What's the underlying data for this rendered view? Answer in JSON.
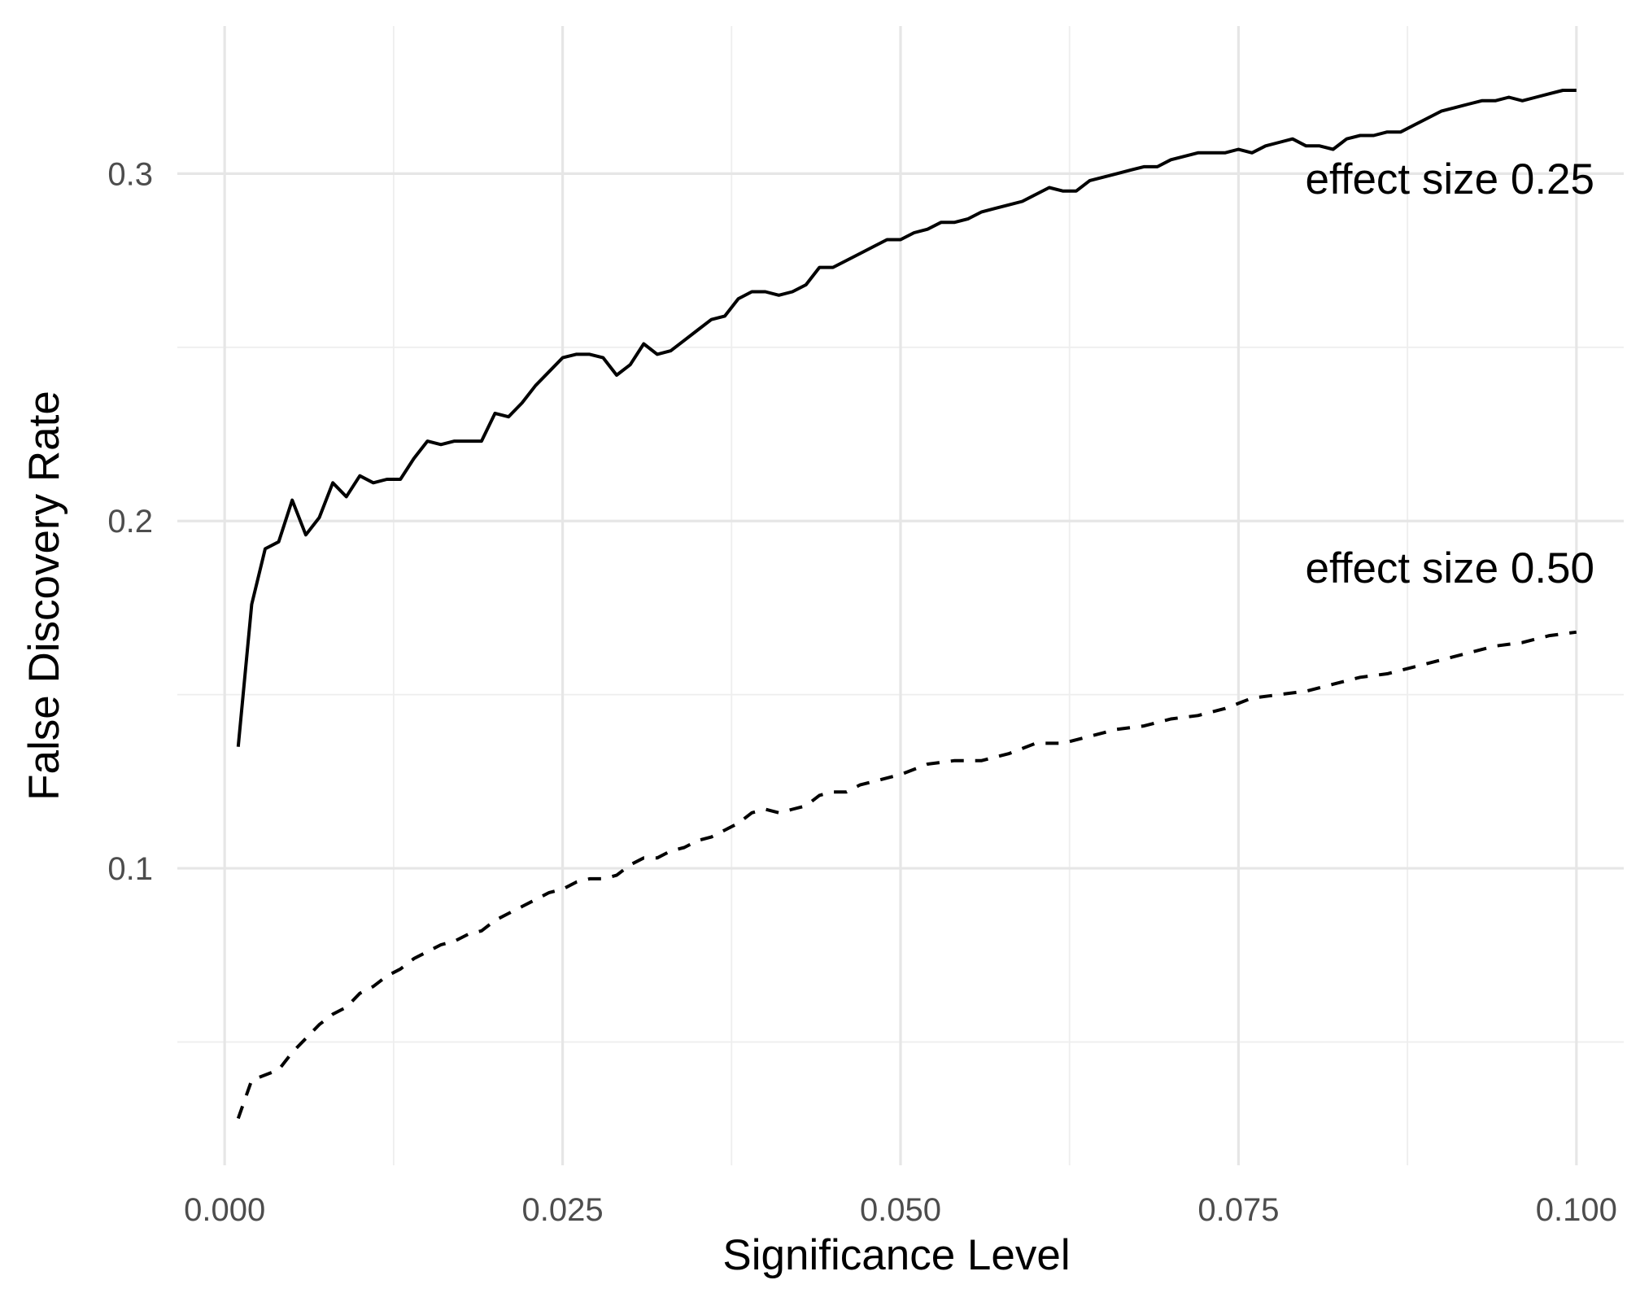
{
  "chart_data": {
    "type": "line",
    "title": "",
    "xlabel": "Significance Level",
    "ylabel": "False Discovery Rate",
    "xlim": [
      -0.0035,
      0.1035
    ],
    "ylim": [
      0.0145,
      0.3425
    ],
    "x_ticks": [
      0.0,
      0.025,
      0.05,
      0.075,
      0.1
    ],
    "x_tick_labels": [
      "0.000",
      "0.025",
      "0.050",
      "0.075",
      "0.100"
    ],
    "y_ticks": [
      0.1,
      0.2,
      0.3
    ],
    "y_tick_labels": [
      "0.1",
      "0.2",
      "0.3"
    ],
    "grid": true,
    "legend": "none",
    "line_color": "#000000",
    "grid_color": "#e6e6e6",
    "series": [
      {
        "annotation": "effect size 0.25",
        "line_style": "solid",
        "x": [
          0.001,
          0.002,
          0.003,
          0.004,
          0.005,
          0.006,
          0.007,
          0.008,
          0.009,
          0.01,
          0.011,
          0.012,
          0.013,
          0.014,
          0.015,
          0.016,
          0.017,
          0.018,
          0.019,
          0.02,
          0.021,
          0.022,
          0.023,
          0.024,
          0.025,
          0.026,
          0.027,
          0.028,
          0.029,
          0.03,
          0.031,
          0.032,
          0.033,
          0.034,
          0.035,
          0.036,
          0.037,
          0.038,
          0.039,
          0.04,
          0.041,
          0.042,
          0.043,
          0.044,
          0.045,
          0.046,
          0.047,
          0.048,
          0.049,
          0.05,
          0.051,
          0.052,
          0.053,
          0.054,
          0.055,
          0.056,
          0.057,
          0.058,
          0.059,
          0.06,
          0.061,
          0.062,
          0.063,
          0.064,
          0.065,
          0.066,
          0.067,
          0.068,
          0.069,
          0.07,
          0.071,
          0.072,
          0.073,
          0.074,
          0.075,
          0.076,
          0.077,
          0.078,
          0.079,
          0.08,
          0.081,
          0.082,
          0.083,
          0.084,
          0.085,
          0.086,
          0.087,
          0.088,
          0.089,
          0.09,
          0.091,
          0.092,
          0.093,
          0.094,
          0.095,
          0.096,
          0.097,
          0.098,
          0.099,
          0.1
        ],
        "y": [
          0.135,
          0.176,
          0.192,
          0.194,
          0.206,
          0.196,
          0.201,
          0.211,
          0.207,
          0.213,
          0.211,
          0.212,
          0.212,
          0.218,
          0.223,
          0.222,
          0.223,
          0.223,
          0.223,
          0.231,
          0.23,
          0.234,
          0.239,
          0.243,
          0.247,
          0.248,
          0.248,
          0.247,
          0.242,
          0.245,
          0.251,
          0.248,
          0.249,
          0.252,
          0.255,
          0.258,
          0.259,
          0.264,
          0.266,
          0.266,
          0.265,
          0.266,
          0.268,
          0.273,
          0.273,
          0.275,
          0.277,
          0.279,
          0.281,
          0.281,
          0.283,
          0.284,
          0.286,
          0.286,
          0.287,
          0.289,
          0.29,
          0.291,
          0.292,
          0.294,
          0.296,
          0.295,
          0.295,
          0.298,
          0.299,
          0.3,
          0.301,
          0.302,
          0.302,
          0.304,
          0.305,
          0.306,
          0.306,
          0.306,
          0.307,
          0.306,
          0.308,
          0.309,
          0.31,
          0.308,
          0.308,
          0.307,
          0.31,
          0.311,
          0.311,
          0.312,
          0.312,
          0.314,
          0.316,
          0.318,
          0.319,
          0.32,
          0.321,
          0.321,
          0.322,
          0.321,
          0.322,
          0.323,
          0.324,
          0.324
        ]
      },
      {
        "annotation": "effect size 0.50",
        "line_style": "dashed",
        "x": [
          0.001,
          0.002,
          0.004,
          0.005,
          0.006,
          0.007,
          0.008,
          0.009,
          0.01,
          0.011,
          0.012,
          0.013,
          0.014,
          0.015,
          0.016,
          0.017,
          0.018,
          0.019,
          0.02,
          0.021,
          0.022,
          0.023,
          0.024,
          0.025,
          0.026,
          0.027,
          0.028,
          0.029,
          0.03,
          0.031,
          0.032,
          0.033,
          0.034,
          0.035,
          0.036,
          0.037,
          0.038,
          0.039,
          0.04,
          0.041,
          0.042,
          0.043,
          0.044,
          0.045,
          0.046,
          0.047,
          0.048,
          0.049,
          0.05,
          0.052,
          0.054,
          0.056,
          0.058,
          0.06,
          0.062,
          0.064,
          0.066,
          0.068,
          0.07,
          0.072,
          0.074,
          0.076,
          0.078,
          0.08,
          0.082,
          0.084,
          0.086,
          0.088,
          0.09,
          0.092,
          0.094,
          0.096,
          0.098,
          0.1
        ],
        "y": [
          0.028,
          0.039,
          0.042,
          0.047,
          0.051,
          0.055,
          0.058,
          0.06,
          0.064,
          0.066,
          0.069,
          0.071,
          0.074,
          0.076,
          0.078,
          0.079,
          0.081,
          0.082,
          0.085,
          0.087,
          0.089,
          0.091,
          0.093,
          0.094,
          0.096,
          0.097,
          0.097,
          0.098,
          0.101,
          0.103,
          0.103,
          0.105,
          0.106,
          0.108,
          0.109,
          0.111,
          0.113,
          0.116,
          0.117,
          0.116,
          0.117,
          0.118,
          0.121,
          0.122,
          0.122,
          0.124,
          0.125,
          0.126,
          0.127,
          0.13,
          0.131,
          0.131,
          0.133,
          0.136,
          0.136,
          0.138,
          0.14,
          0.141,
          0.143,
          0.144,
          0.146,
          0.149,
          0.15,
          0.151,
          0.153,
          0.155,
          0.156,
          0.158,
          0.16,
          0.162,
          0.164,
          0.165,
          0.167,
          0.168
        ]
      }
    ]
  }
}
